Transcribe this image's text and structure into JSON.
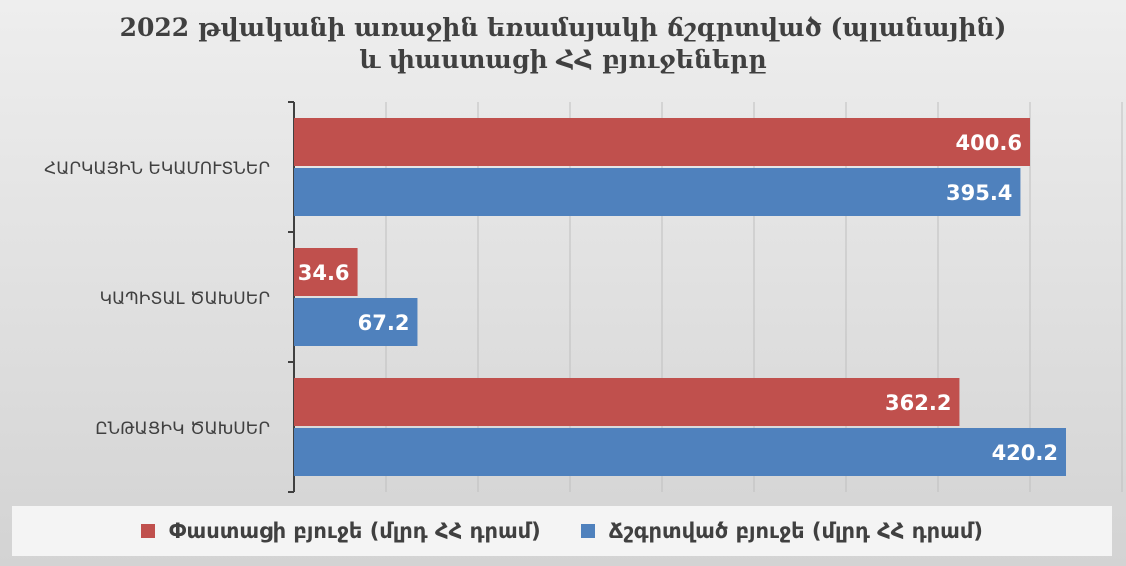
{
  "chart_data": {
    "type": "bar",
    "orientation": "horizontal",
    "title": "2022 թվականի առաջին եռամսյակի ճշգրտված (պլանային) և փաստացի ՀՀ բյուջեները",
    "title_lines": [
      "2022 թվականի առաջին եռամսյակի ճշգրտված (պլանային)",
      "և փաստացի ՀՀ բյուջեները"
    ],
    "categories": [
      "ՀԱՐԿԱՅԻՆ ԵԿԱՄՈՒՏՆԵՐ",
      "ԿԱՊԻՏԱԼ ԾԱԽՍԵՐ",
      "ԸՆԹԱՑԻԿ ԾԱԽՍԵՐ"
    ],
    "series": [
      {
        "name": "Փաստացի բյուջե (մլրդ ՀՀ դրամ)",
        "values": [
          400.6,
          34.6,
          362.2
        ],
        "color": "#c0504d"
      },
      {
        "name": "Ճշգրտված բյուջե (մլրդ ՀՀ դրամ)",
        "values": [
          395.4,
          67.2,
          420.2
        ],
        "color": "#4f81bd"
      }
    ],
    "xlim": [
      0,
      420.2
    ],
    "grid": true,
    "legend_position": "bottom",
    "data_labels": true,
    "axis_color": "#404040",
    "grid_color": "#bfbfbf"
  }
}
